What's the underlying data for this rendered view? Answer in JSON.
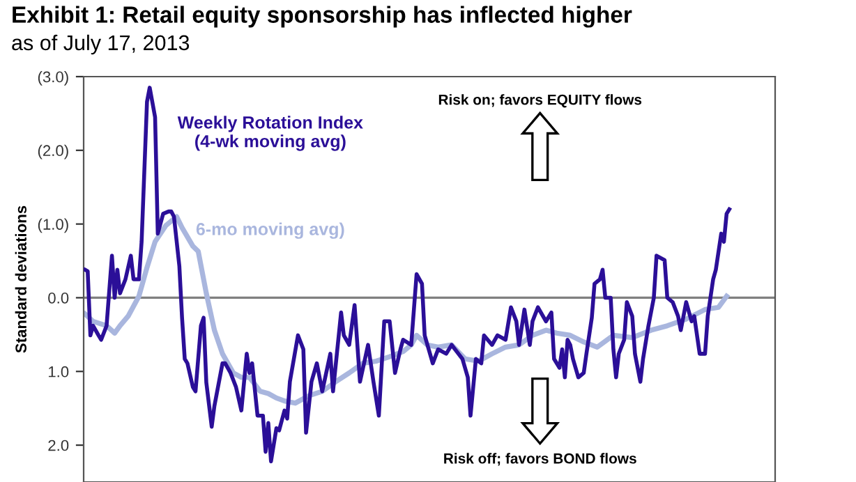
{
  "chart_data": {
    "type": "line",
    "title": "Exhibit 1: Retail equity sponsorship has inflected higher",
    "subtitle": "as of July 17, 2013",
    "ylabel": "Standard deviations",
    "ylim": [
      2.5,
      -3.0
    ],
    "yticks": [
      {
        "value": -3,
        "label": "(3.0)"
      },
      {
        "value": -2,
        "label": "(2.0)"
      },
      {
        "value": -1,
        "label": "(1.0)"
      },
      {
        "value": 0,
        "label": "0.0"
      },
      {
        "value": 1,
        "label": "1.0"
      },
      {
        "value": 2,
        "label": "2.0"
      }
    ],
    "tick_labels": "y",
    "line_style": "solid",
    "ref_lines": [
      {
        "axis": "y",
        "value": 0,
        "color": "#808080"
      }
    ],
    "annotations": [
      "Risk on; favors EQUITY flows",
      "Risk off; favors BOND flows"
    ],
    "categories": [
      null,
      null,
      null,
      null,
      null,
      null,
      null,
      null,
      null,
      null,
      null,
      null,
      null,
      null,
      null,
      null,
      null,
      null,
      null,
      null,
      null,
      null,
      null,
      null,
      null,
      null,
      null,
      null,
      null,
      null,
      null,
      null,
      null,
      null,
      null,
      null,
      null,
      null,
      null,
      null,
      null,
      null,
      null,
      null,
      null,
      null,
      null,
      null,
      null,
      null,
      null,
      null,
      null,
      null,
      null,
      null,
      null,
      null,
      null,
      null,
      null,
      null,
      null,
      null,
      null,
      null,
      null,
      null,
      null,
      null,
      null,
      null,
      null,
      null,
      null,
      null,
      null,
      null,
      null,
      null,
      null,
      null,
      null,
      null,
      null,
      null,
      null,
      null,
      null,
      null,
      null,
      null,
      null,
      null,
      null,
      null,
      null,
      null,
      null,
      null,
      null,
      null,
      null,
      null,
      null,
      null,
      null,
      null,
      null,
      null,
      null,
      null,
      null,
      null,
      null,
      null,
      null,
      null,
      null,
      null,
      null,
      null,
      null,
      null,
      null,
      null,
      null,
      null,
      null,
      null,
      null,
      null,
      null,
      null,
      null,
      null,
      null,
      null,
      null,
      null,
      null,
      null,
      null,
      null,
      null,
      null,
      null,
      null,
      null,
      null,
      null,
      null,
      null,
      null,
      null,
      null,
      null,
      null,
      null,
      null,
      null,
      null,
      null,
      null,
      null,
      null,
      null,
      null,
      null,
      null,
      null,
      null,
      null,
      null,
      null,
      null,
      null,
      null,
      null,
      null,
      null,
      null,
      null,
      null,
      null,
      null,
      null,
      null,
      null,
      null,
      null,
      null,
      null,
      null,
      null,
      null,
      null,
      null,
      null,
      null,
      null,
      null,
      null,
      null,
      null,
      null,
      null,
      null,
      null,
      null,
      null,
      null,
      null,
      null,
      null,
      null,
      null,
      null,
      null,
      null,
      null,
      null,
      null,
      null,
      null,
      null,
      null,
      null,
      null,
      null,
      null,
      null,
      null,
      null,
      null,
      null,
      null,
      null,
      null,
      null,
      null,
      null,
      null,
      null,
      null,
      null,
      null,
      null,
      null
    ],
    "series": [
      {
        "name": "Weekly Rotation Index\n(4-wk moving avg)",
        "color": "#2b0f98",
        "values": [
          -0.38,
          -0.36,
          0.51,
          0.38,
          null,
          0.51,
          0.57,
          null,
          0.38,
          null,
          -0.57,
          0,
          -0.38,
          -0.06,
          null,
          -0.25,
          null,
          -0.57,
          -0.25,
          null,
          -0.25,
          -0.76,
          null,
          -2.66,
          -2.85,
          null,
          -2.45,
          -0.87,
          null,
          -1.14,
          null,
          -1.17,
          -1.17,
          -1.1,
          null,
          -0.43,
          0.27,
          0.83,
          0.89,
          null,
          1.21,
          1.27,
          null,
          0.38,
          0.27,
          1.15,
          null,
          1.75,
          1.47,
          null,
          null,
          0.89,
          0.89,
          null,
          1.02,
          null,
          1.21,
          null,
          1.53,
          null,
          0.76,
          1.02,
          0.89,
          null,
          1.6,
          null,
          1.6,
          2.09,
          1.7,
          2.22,
          null,
          1.77,
          1.8,
          null,
          1.53,
          1.64,
          1.14,
          null,
          null,
          0.51,
          null,
          0.7,
          1.83,
          null,
          1.14,
          null,
          0.89,
          null,
          1.27,
          null,
          null,
          0.76,
          1.27,
          null,
          null,
          0.2,
          0.51,
          null,
          0.64,
          null,
          0.1,
          null,
          1.14,
          null,
          null,
          0.64,
          null,
          1.14,
          null,
          1.6,
          null,
          0.32,
          null,
          0.32,
          null,
          1.02,
          null,
          0.7,
          0.57,
          null,
          null,
          0.64,
          null,
          -0.32,
          null,
          -0.19,
          0.51,
          null,
          null,
          0.89,
          null,
          0.7,
          null,
          null,
          0.76,
          null,
          0.64,
          null,
          null,
          null,
          0.83,
          null,
          1.08,
          1.6,
          null,
          0.83,
          null,
          0.89,
          0.51,
          null,
          null,
          0.64,
          null,
          0.51,
          null,
          null,
          0.57,
          null,
          0.13,
          null,
          0.32,
          0.64,
          null,
          0.16,
          null,
          0.64,
          0.32,
          null,
          0.13,
          null,
          null,
          0.32,
          null,
          0.2,
          0.83,
          null,
          0.95,
          0.7,
          1.08,
          0.57,
          0.64,
          0.83,
          null,
          1.08,
          null,
          1.02,
          0.76,
          null,
          0.27,
          -0.19,
          null,
          -0.25,
          -0.38,
          0,
          null,
          0,
          0.7,
          1.08,
          0.76,
          null,
          0.57,
          0.06,
          null,
          0.25,
          0.76,
          null,
          1.14,
          0.83,
          null,
          0.38,
          null,
          0,
          -0.57,
          null,
          null,
          -0.51,
          0,
          null,
          0.06,
          null,
          0.25,
          0.44,
          null,
          0.06,
          null,
          0.32,
          0.25,
          null,
          0.76,
          null,
          0.76,
          0.25,
          null,
          -0.25,
          -0.38,
          null,
          -0.87,
          -0.76,
          -1.14,
          -1.2,
          null,
          null,
          null,
          null,
          null,
          null,
          null,
          null,
          null
        ]
      },
      {
        "name": "6-mo moving avg)",
        "color": "#a9b6de",
        "values": [
          0.22,
          null,
          null,
          0.32,
          null,
          null,
          null,
          null,
          0.38,
          null,
          null,
          0.48,
          null,
          0.38,
          null,
          null,
          0.25,
          null,
          null,
          null,
          -0.02,
          null,
          null,
          -0.41,
          null,
          null,
          -0.76,
          null,
          null,
          null,
          -0.98,
          null,
          null,
          null,
          -1.1,
          null,
          -0.95,
          null,
          null,
          null,
          -0.7,
          null,
          -0.63,
          null,
          null,
          -0.06,
          null,
          null,
          0.44,
          null,
          null,
          0.76,
          null,
          null,
          null,
          1.02,
          null,
          null,
          1.08,
          null,
          null,
          1.08,
          null,
          null,
          null,
          1.27,
          null,
          null,
          1.3,
          null,
          null,
          1.36,
          null,
          null,
          1.4,
          null,
          null,
          null,
          1.43,
          null,
          null,
          null,
          null,
          1.33,
          null,
          null,
          null,
          null,
          1.27,
          null,
          null,
          null,
          null,
          1.14,
          null,
          null,
          null,
          null,
          1.02,
          null,
          null,
          null,
          null,
          0.89,
          null,
          null,
          null,
          null,
          0.86,
          null,
          null,
          null,
          null,
          0.8,
          null,
          null,
          null,
          null,
          0.73,
          null,
          null,
          0.64,
          null,
          0.51,
          null,
          null,
          null,
          0.64,
          null,
          null,
          null,
          0.67,
          null,
          null,
          null,
          null,
          0.64,
          null,
          null,
          null,
          null,
          0.83,
          null,
          null,
          null,
          null,
          0.86,
          null,
          null,
          null,
          null,
          0.76,
          null,
          null,
          null,
          null,
          0.67,
          null,
          null,
          null,
          null,
          0.64,
          null,
          null,
          null,
          null,
          0.51,
          null,
          null,
          null,
          null,
          0.44,
          null,
          null,
          null,
          0.48,
          null,
          null,
          null,
          null,
          0.51,
          null,
          null,
          null,
          null,
          0.6,
          null,
          null,
          null,
          null,
          0.67,
          null,
          null,
          null,
          null,
          null,
          0.51,
          null,
          null,
          null,
          null,
          null,
          null,
          0.54,
          null,
          null,
          null,
          null,
          null,
          null,
          0.44,
          null,
          null,
          null,
          null,
          null,
          0.38,
          null,
          null,
          null,
          null,
          null,
          null,
          0.29,
          null,
          null,
          null,
          null,
          null,
          null,
          0.16,
          null,
          null,
          null,
          null,
          0.13,
          null,
          null,
          -0.02,
          null,
          null,
          null,
          null,
          null,
          null,
          null,
          null,
          null,
          null
        ]
      }
    ]
  }
}
